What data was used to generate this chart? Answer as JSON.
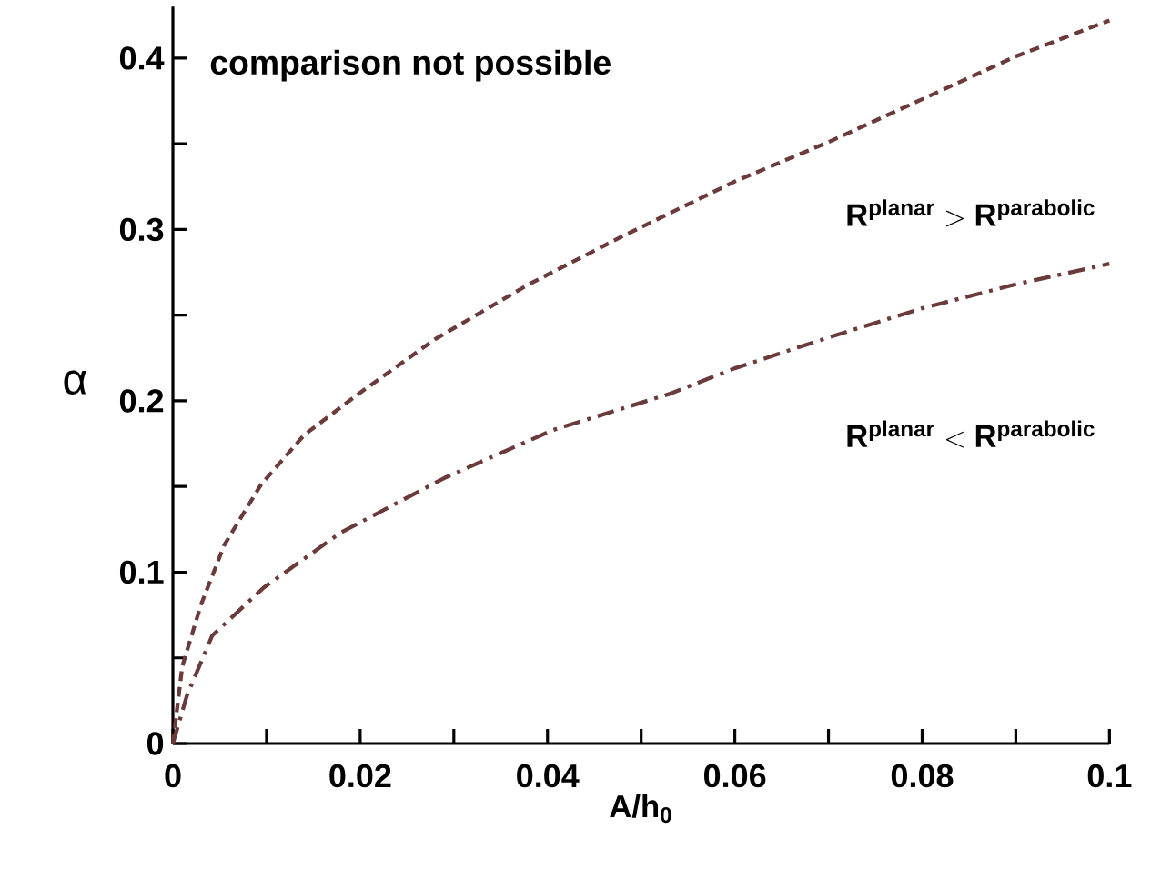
{
  "chart_data": {
    "type": "line",
    "xlabel": "A/h$_{0}$",
    "ylabel": "α",
    "x": [
      0,
      0.001,
      0.003,
      0.0055,
      0.0094,
      0.014,
      0.0198,
      0.028,
      0.038,
      0.048,
      0.06,
      0.07,
      0.08,
      0.09,
      0.1
    ],
    "series": [
      {
        "color": "#6b3a3a",
        "line_style": "dashed",
        "values": [
          0,
          0.045,
          0.081,
          0.116,
          0.151,
          0.18,
          0.204,
          0.236,
          0.268,
          0.296,
          0.328,
          0.351,
          0.376,
          0.401,
          0.422
        ]
      },
      {
        "color": "#6b3a3a",
        "line_style": "dashdot",
        "x": [
          0,
          0.0015,
          0.0042,
          0.0097,
          0.0179,
          0.029,
          0.0406,
          0.053,
          0.06,
          0.07,
          0.08,
          0.09,
          0.1
        ],
        "values": [
          0,
          0.028,
          0.063,
          0.091,
          0.123,
          0.155,
          0.183,
          0.204,
          0.219,
          0.237,
          0.254,
          0.268,
          0.28
        ]
      }
    ],
    "xlim": [
      0,
      0.1
    ],
    "ylim": [
      0,
      0.43
    ],
    "xticks": [
      0,
      {
        "value": 0.01,
        "label": null
      },
      0.02,
      {
        "value": 0.03,
        "label": null
      },
      0.04,
      {
        "value": 0.05,
        "label": null
      },
      0.06,
      {
        "value": 0.07,
        "label": null
      },
      0.08,
      {
        "value": 0.09,
        "label": null
      },
      0.1
    ],
    "yticks": [
      0,
      {
        "value": 0.05,
        "label": null
      },
      0.1,
      {
        "value": 0.15,
        "label": null
      },
      0.2,
      {
        "value": 0.25,
        "label": null
      },
      0.3,
      {
        "value": 0.35,
        "label": null
      },
      0.4
    ],
    "annotations": [
      "comparison not possible",
      "\\mathbf{R}^{\\mathbf{planar}} > \\mathbf{R}^{\\mathbf{parabolic}}",
      "\\mathbf{R}^{\\mathbf{planar}} < \\mathbf{R}^{\\mathbf{parabolic}}"
    ],
    "grid": false,
    "marker": "none"
  }
}
